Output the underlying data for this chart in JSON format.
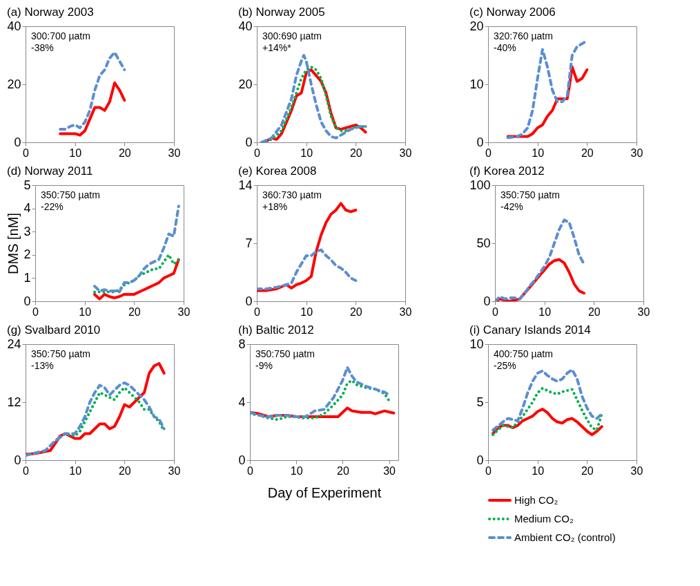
{
  "chart_data": [
    {
      "type": "line",
      "title": "(a) Norway 2003",
      "annotations": [
        "300:700 µatm",
        "-38%"
      ],
      "xlim": [
        0,
        30
      ],
      "xticks": [
        0,
        10,
        20,
        30
      ],
      "ylim": [
        0,
        40
      ],
      "yticks": [
        0,
        20,
        40
      ],
      "grid": false,
      "series": [
        {
          "color": "#ff0000",
          "line_style": "solid",
          "x": [
            7,
            8,
            10,
            11,
            12,
            13,
            14,
            15,
            16,
            17,
            18,
            19,
            20
          ],
          "values": [
            3,
            3,
            3,
            2.5,
            4,
            8,
            12,
            12,
            11,
            14,
            20.5,
            18,
            14.5
          ]
        },
        {
          "color": "#5b8ed0",
          "line_style": "dashed",
          "x": [
            7,
            8,
            9,
            10,
            11,
            12,
            13,
            14,
            15,
            16,
            17,
            18,
            19,
            20
          ],
          "values": [
            4.5,
            4.5,
            5.5,
            6,
            5,
            7,
            11,
            18,
            23,
            25,
            29,
            31,
            28,
            25
          ]
        }
      ]
    },
    {
      "type": "line",
      "title": "(b) Norway 2005",
      "annotations": [
        "300:690 µatm",
        "+14%*"
      ],
      "xlim": [
        0,
        30
      ],
      "xticks": [
        0,
        10,
        20,
        30
      ],
      "ylim": [
        0,
        40
      ],
      "yticks": [
        0,
        20,
        40
      ],
      "grid": false,
      "series": [
        {
          "color": "#ff0000",
          "line_style": "solid",
          "x": [
            1,
            2,
            3,
            4,
            5,
            6,
            7,
            8,
            9,
            10,
            11,
            12,
            13,
            14,
            15,
            16,
            17,
            18,
            19,
            20,
            21,
            22
          ],
          "values": [
            0,
            0.5,
            1.5,
            1,
            3,
            7,
            11,
            16,
            17,
            24,
            25,
            23,
            21,
            17,
            10,
            5,
            4.5,
            5,
            5.5,
            6,
            5,
            3.5
          ]
        },
        {
          "color": "#00b050",
          "line_style": "dotted",
          "x": [
            1,
            3,
            5,
            7,
            9,
            10,
            11,
            12,
            13,
            14,
            15,
            16,
            17,
            18,
            19,
            20,
            21,
            22
          ],
          "values": [
            0,
            1,
            4,
            12,
            22,
            25,
            26,
            25,
            22,
            16,
            9,
            5,
            4,
            4,
            4.5,
            5.5,
            5.5,
            5.5
          ]
        },
        {
          "color": "#5b8ed0",
          "line_style": "dashed",
          "x": [
            1,
            3,
            5,
            7,
            8,
            9,
            9.5,
            10,
            11,
            12,
            13,
            14,
            15,
            16,
            17,
            18,
            19,
            20,
            21,
            22
          ],
          "values": [
            0,
            1.5,
            6,
            15,
            23,
            28,
            30,
            28,
            20,
            13,
            7,
            4,
            2,
            1.5,
            2.5,
            3.5,
            4.5,
            5,
            5.5,
            5.5
          ]
        }
      ]
    },
    {
      "type": "line",
      "title": "(c) Norway 2006",
      "annotations": [
        "320:760 µatm",
        "-40%"
      ],
      "xlim": [
        0,
        30
      ],
      "xticks": [
        0,
        10,
        20,
        30
      ],
      "ylim": [
        0,
        20
      ],
      "yticks": [
        0,
        10,
        20
      ],
      "grid": false,
      "series": [
        {
          "color": "#ff0000",
          "line_style": "solid",
          "x": [
            4,
            5,
            7,
            8,
            9,
            10,
            11,
            12,
            13,
            14,
            15,
            16,
            16.5,
            17,
            18,
            19,
            20
          ],
          "values": [
            1,
            1,
            1,
            1,
            1.5,
            2.5,
            3,
            4.5,
            5.5,
            7.5,
            7.5,
            7.5,
            10,
            13,
            10.5,
            11,
            12.5
          ]
        },
        {
          "color": "#5b8ed0",
          "line_style": "dashed",
          "x": [
            4,
            6,
            7,
            8,
            9,
            10,
            11,
            12,
            13,
            14,
            15,
            16,
            17,
            18,
            19,
            20
          ],
          "values": [
            0.8,
            1,
            1.5,
            2.5,
            5.5,
            11,
            16,
            13,
            9,
            7,
            7,
            8,
            15,
            16.5,
            17,
            17.5
          ]
        }
      ]
    },
    {
      "type": "line",
      "title": "(d) Norway 2011",
      "ylabel": "DMS [nM]",
      "annotations": [
        "350:750 µatm",
        "-22%"
      ],
      "xlim": [
        0,
        30
      ],
      "xticks": [
        0,
        10,
        20,
        30
      ],
      "ylim": [
        0,
        5
      ],
      "yticks": [
        0,
        1,
        2,
        3,
        4,
        5
      ],
      "grid": false,
      "series": [
        {
          "color": "#ff0000",
          "line_style": "solid",
          "x": [
            12,
            13,
            14,
            15,
            16,
            17,
            18,
            19,
            20,
            21,
            22,
            23,
            24,
            25,
            26,
            27,
            28,
            29
          ],
          "values": [
            0.3,
            0.1,
            0.3,
            0.2,
            0.15,
            0.2,
            0.3,
            0.3,
            0.3,
            0.4,
            0.5,
            0.6,
            0.7,
            0.8,
            1,
            1.1,
            1.2,
            1.8
          ]
        },
        {
          "color": "#00b050",
          "line_style": "dotted",
          "x": [
            12,
            14,
            16,
            17,
            18,
            19,
            20,
            21,
            22,
            23,
            24,
            25,
            26,
            27,
            28,
            29
          ],
          "values": [
            0.4,
            0.4,
            0.4,
            0.5,
            0.7,
            0.8,
            0.9,
            1.1,
            1.2,
            1.3,
            1.4,
            1.4,
            1.7,
            2,
            1.6,
            1.8
          ]
        },
        {
          "color": "#5b8ed0",
          "line_style": "dashed",
          "x": [
            12,
            13,
            14,
            15,
            16,
            17,
            18,
            19,
            20,
            21,
            22,
            23,
            24,
            25,
            26,
            27,
            28,
            29
          ],
          "values": [
            0.65,
            0.45,
            0.5,
            0.45,
            0.45,
            0.4,
            0.8,
            0.8,
            0.9,
            1.1,
            1.4,
            1.6,
            1.7,
            1.8,
            2.3,
            2.9,
            2.8,
            4.1
          ]
        }
      ]
    },
    {
      "type": "line",
      "title": "(e) Korea 2008",
      "annotations": [
        "360:730 µatm",
        "+18%"
      ],
      "xlim": [
        0,
        30
      ],
      "xticks": [
        0,
        10,
        20,
        30
      ],
      "ylim": [
        0,
        14
      ],
      "yticks": [
        0,
        7,
        14
      ],
      "grid": false,
      "series": [
        {
          "color": "#ff0000",
          "line_style": "solid",
          "x": [
            0,
            2,
            4,
            6,
            7,
            8,
            9,
            10,
            11,
            12,
            13,
            14,
            15,
            16,
            17,
            18,
            19,
            20
          ],
          "values": [
            1.3,
            1.3,
            1.5,
            2,
            1.6,
            2,
            2.2,
            2.5,
            3,
            6,
            8,
            9.5,
            10.5,
            11,
            11.8,
            11,
            10.8,
            11
          ]
        },
        {
          "color": "#5b8ed0",
          "line_style": "dashed",
          "x": [
            0,
            2,
            4,
            6,
            7,
            8,
            9,
            10,
            11,
            12,
            13,
            14,
            15,
            16,
            17,
            18,
            19,
            20
          ],
          "values": [
            1.5,
            1.5,
            1.7,
            2,
            2.2,
            3.5,
            4.5,
            5.5,
            5.5,
            6,
            6.2,
            5.5,
            5,
            4.3,
            4,
            3.5,
            2.8,
            2.5
          ]
        }
      ]
    },
    {
      "type": "line",
      "title": "(f) Korea 2012",
      "annotations": [
        "350:750 µatm",
        "-42%"
      ],
      "xlim": [
        0,
        30
      ],
      "xticks": [
        0,
        10,
        20,
        30
      ],
      "ylim": [
        0,
        100
      ],
      "yticks": [
        0,
        50,
        100
      ],
      "grid": false,
      "series": [
        {
          "color": "#ff0000",
          "line_style": "solid",
          "x": [
            0,
            1,
            2,
            3,
            4,
            5,
            6,
            7,
            8,
            9,
            10,
            11,
            12,
            13,
            14,
            15,
            16,
            17,
            18
          ],
          "values": [
            0,
            2,
            1,
            0,
            1,
            2,
            7,
            12,
            17,
            22,
            27,
            32,
            35,
            36,
            33,
            25,
            15,
            9,
            7
          ]
        },
        {
          "color": "#5b8ed0",
          "line_style": "dashed",
          "x": [
            0,
            1,
            2,
            3,
            4,
            5,
            6,
            7,
            8,
            9,
            10,
            11,
            12,
            13,
            14,
            15,
            16,
            17,
            18
          ],
          "values": [
            0,
            4,
            2,
            3,
            3,
            2,
            7,
            13,
            18,
            24,
            30,
            38,
            50,
            62,
            70,
            68,
            55,
            40,
            32
          ]
        }
      ]
    },
    {
      "type": "line",
      "title": "(g) Svalbard 2010",
      "annotations": [
        "350:750 µatm",
        "-13%"
      ],
      "xlim": [
        0,
        30
      ],
      "xticks": [
        0,
        10,
        20,
        30
      ],
      "ylim": [
        0,
        24
      ],
      "yticks": [
        0,
        12,
        24
      ],
      "grid": false,
      "series": [
        {
          "color": "#ff0000",
          "line_style": "solid",
          "x": [
            0,
            2,
            4,
            5,
            6,
            7,
            8,
            9,
            10,
            11,
            12,
            13,
            14,
            15,
            16,
            17,
            18,
            19,
            20,
            21,
            22,
            23,
            24,
            25,
            26,
            27,
            28
          ],
          "values": [
            1.2,
            1.4,
            1.8,
            2,
            3.5,
            5,
            5.5,
            5,
            4.5,
            4.5,
            5.5,
            5.5,
            6.5,
            7.5,
            7.5,
            6.5,
            7,
            9,
            11.5,
            11,
            12,
            13,
            14,
            18,
            19.5,
            20,
            18
          ]
        },
        {
          "color": "#00b050",
          "line_style": "dotted",
          "x": [
            0,
            2,
            4,
            6,
            8,
            10,
            11,
            12,
            13,
            14,
            15,
            16,
            17,
            18,
            19,
            20,
            21,
            22,
            23,
            24,
            25,
            26,
            27,
            28
          ],
          "values": [
            1,
            1.5,
            2,
            4,
            5.5,
            5,
            6,
            8,
            10,
            12,
            14,
            13.5,
            13,
            12.5,
            14,
            15,
            14,
            13,
            12,
            10.5,
            10.5,
            9,
            8,
            6
          ]
        },
        {
          "color": "#5b8ed0",
          "line_style": "dashed",
          "x": [
            0,
            2,
            4,
            6,
            8,
            10,
            11,
            12,
            13,
            14,
            15,
            16,
            17,
            18,
            19,
            20,
            21,
            22,
            23,
            24,
            25,
            26,
            27,
            28
          ],
          "values": [
            1,
            1.5,
            2,
            4,
            5.5,
            5.5,
            7,
            9,
            12,
            14,
            15.5,
            15,
            13.5,
            14.5,
            15.5,
            16,
            15.5,
            14.5,
            13.5,
            12.5,
            11,
            9,
            8.5,
            6.5
          ]
        }
      ]
    },
    {
      "type": "line",
      "title": "(h) Baltic 2012",
      "xlabel": "Day of Experiment",
      "annotations": [
        "350:750 µatm",
        "-9%"
      ],
      "xlim": [
        0,
        32
      ],
      "xticks": [
        0,
        10,
        20,
        30
      ],
      "ylim": [
        0,
        8
      ],
      "yticks": [
        0,
        4,
        8
      ],
      "grid": false,
      "series": [
        {
          "color": "#ff0000",
          "line_style": "solid",
          "x": [
            0,
            2,
            4,
            6,
            8,
            10,
            12,
            14,
            16,
            18,
            19,
            20,
            21,
            22,
            24,
            26,
            27,
            29,
            31
          ],
          "values": [
            3.3,
            3.2,
            3,
            3.1,
            3.1,
            3,
            3,
            3,
            3,
            3,
            3,
            3.3,
            3.6,
            3.4,
            3.3,
            3.3,
            3.2,
            3.4,
            3.25
          ]
        },
        {
          "color": "#00b050",
          "line_style": "dotted",
          "x": [
            0,
            2,
            4,
            6,
            8,
            10,
            11,
            14,
            16,
            18,
            20,
            21,
            22,
            23,
            25,
            27,
            29,
            30
          ],
          "values": [
            3.2,
            3.1,
            2.9,
            2.8,
            3,
            3,
            2.9,
            2.9,
            3.2,
            3.8,
            4.5,
            5.3,
            5.5,
            5.2,
            5,
            4.9,
            4.6,
            4.1
          ]
        },
        {
          "color": "#5b8ed0",
          "line_style": "dashed",
          "x": [
            0,
            2,
            4,
            6,
            8,
            10,
            12,
            13,
            14,
            16,
            18,
            20,
            21,
            22,
            23,
            25,
            26,
            27,
            29,
            30
          ],
          "values": [
            3.3,
            3.1,
            3,
            3.1,
            3.1,
            3,
            3,
            3.2,
            3.4,
            3.5,
            4.3,
            5.5,
            6.4,
            5.8,
            5.4,
            5.1,
            5,
            4.9,
            4.7,
            4.5
          ]
        }
      ]
    },
    {
      "type": "line",
      "title": "(i) Canary Islands 2014",
      "annotations": [
        "400:750 µatm",
        "-25%"
      ],
      "xlim": [
        0,
        30
      ],
      "xticks": [
        0,
        10,
        20,
        30
      ],
      "ylim": [
        0,
        10
      ],
      "yticks": [
        0,
        5,
        10
      ],
      "grid": false,
      "legend": "bottom",
      "series": [
        {
          "name": "High CO₂",
          "color": "#ff0000",
          "line_style": "solid",
          "x": [
            1,
            2,
            3,
            4,
            5,
            6,
            7,
            8,
            9,
            10,
            11,
            12,
            13,
            14,
            15,
            16,
            17,
            18,
            19,
            20,
            21,
            22,
            23
          ],
          "values": [
            2.3,
            2.8,
            3,
            3,
            2.8,
            3,
            3.4,
            3.6,
            3.8,
            4.2,
            4.4,
            4.1,
            3.6,
            3.3,
            3.2,
            3.5,
            3.6,
            3.3,
            2.9,
            2.5,
            2.2,
            2.5,
            2.9
          ]
        },
        {
          "name": "Medium CO₂",
          "color": "#00b050",
          "line_style": "dotted",
          "x": [
            1,
            3,
            5,
            7,
            9,
            10,
            11,
            12,
            13,
            14,
            15,
            16,
            17,
            18,
            19,
            20,
            21,
            22,
            23
          ],
          "values": [
            2.2,
            3,
            2.8,
            3.8,
            5,
            5.8,
            6.2,
            6,
            5.8,
            5.7,
            5.9,
            6,
            6.1,
            5.2,
            4.3,
            3.5,
            2.8,
            2.6,
            4
          ]
        },
        {
          "name": "Ambient CO₂ (control)",
          "color": "#5b8ed0",
          "line_style": "dashed",
          "x": [
            1,
            3,
            4,
            5,
            6,
            7,
            8,
            9,
            10,
            11,
            12,
            13,
            14,
            15,
            16,
            17,
            18,
            19,
            20,
            21,
            22,
            23
          ],
          "values": [
            2.6,
            3.3,
            3.6,
            3.5,
            3.4,
            4.5,
            5.8,
            6.8,
            7.5,
            7.7,
            7.3,
            7,
            6.8,
            7,
            7.5,
            7.8,
            7,
            5.5,
            4.5,
            3.8,
            3.6,
            4
          ]
        }
      ]
    }
  ]
}
